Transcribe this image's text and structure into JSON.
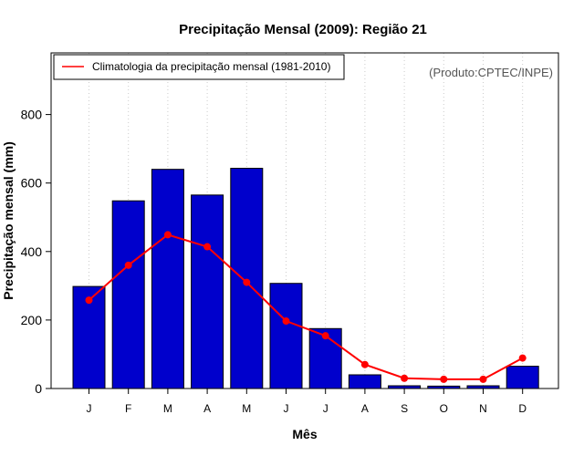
{
  "chart_data": {
    "type": "bar",
    "title": "Precipitação Mensal (2009): Região 21",
    "xlabel": "Mês",
    "ylabel": "Precipitação mensal (mm)",
    "categories": [
      "J",
      "F",
      "M",
      "A",
      "M",
      "J",
      "J",
      "A",
      "S",
      "O",
      "N",
      "D"
    ],
    "ylim": [
      0,
      980
    ],
    "yticks": [
      0,
      200,
      400,
      600,
      800
    ],
    "grid": "vertical dotted",
    "series": [
      {
        "name": "Precipitação mensal (2009)",
        "type": "bar",
        "color": "#0000cc",
        "values": [
          298,
          548,
          640,
          565,
          643,
          307,
          175,
          40,
          8,
          7,
          8,
          65
        ]
      },
      {
        "name": "Climatologia da precipitação mensal (1981-2010)",
        "type": "line",
        "color": "#ff0000",
        "values": [
          258,
          360,
          449,
          414,
          310,
          197,
          154,
          70,
          30,
          27,
          27,
          89
        ]
      }
    ],
    "legend": {
      "position": "top-left",
      "entries": [
        "Climatologia da precipitação mensal (1981-2010)"
      ]
    },
    "annotation": "(Produto:CPTEC/INPE)"
  }
}
